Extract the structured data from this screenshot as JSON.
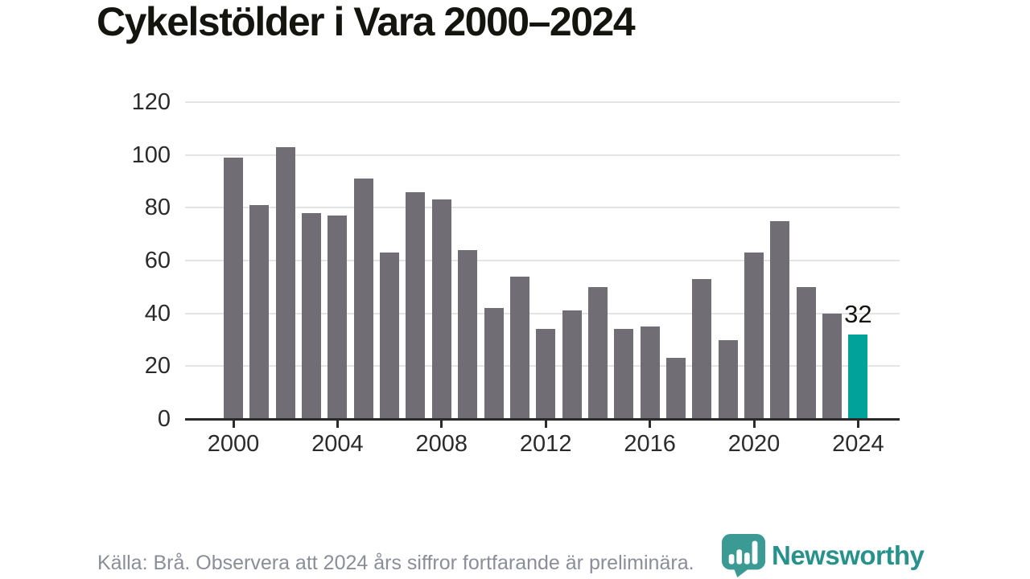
{
  "chart_data": {
    "type": "bar",
    "title": "Cykelstölder i Vara 2000–2024",
    "x": [
      2000,
      2001,
      2002,
      2003,
      2004,
      2005,
      2006,
      2007,
      2008,
      2009,
      2010,
      2011,
      2012,
      2013,
      2014,
      2015,
      2016,
      2017,
      2018,
      2019,
      2020,
      2021,
      2022,
      2023,
      2024
    ],
    "values": [
      99,
      81,
      103,
      78,
      77,
      91,
      63,
      86,
      83,
      64,
      42,
      54,
      34,
      41,
      50,
      34,
      35,
      23,
      53,
      30,
      63,
      75,
      50,
      40,
      32
    ],
    "xlabel": "",
    "ylabel": "",
    "ylim": [
      0,
      120
    ],
    "yticks": [
      0,
      20,
      40,
      60,
      80,
      100,
      120
    ],
    "xticks": [
      2000,
      2004,
      2008,
      2012,
      2016,
      2020,
      2024
    ],
    "grid": "horizontal",
    "legend": "none",
    "bar_color": "#706d74",
    "highlight_color": "#00a29a",
    "highlight_index": 24,
    "value_label": {
      "index": 24,
      "text": "32"
    },
    "axis_color": "#2b2b2b",
    "gridline_color": "#e4e4e4"
  },
  "footer": {
    "source_text": "Källa: Brå. Observera att 2024 års siffror fortfarande är preliminära.",
    "logo_text": "Newsworthy",
    "logo_icon_color": "#3b9a93",
    "logo_text_color": "#27928c"
  }
}
